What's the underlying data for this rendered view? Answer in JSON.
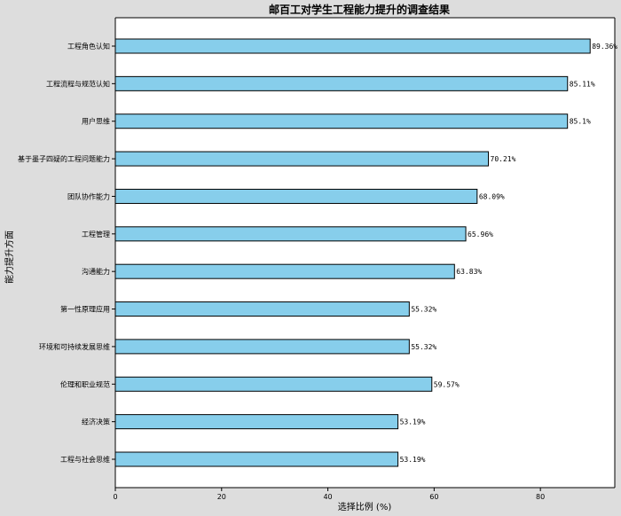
{
  "chart_data": {
    "type": "bar",
    "orientation": "horizontal",
    "title": "邮百工对学生工程能力提升的调查结果",
    "xlabel": "选择比例 (%)",
    "ylabel": "能力提升方面",
    "xlim": [
      0,
      94
    ],
    "xticks": [
      0,
      20,
      40,
      60,
      80
    ],
    "bar_color": "#87ceeb",
    "bar_edge_color": "#000000",
    "background_color": "#dddddd",
    "plot_background_color": "#ffffff",
    "grid": false,
    "categories": [
      "工程角色认知",
      "工程流程与规范认知",
      "用户思维",
      "基于墨子四疑的工程问题能力",
      "团队协作能力",
      "工程管理",
      "沟通能力",
      "第一性原理应用",
      "环境和可持续发展思维",
      "伦理和职业规范",
      "经济决策",
      "工程与社会思维"
    ],
    "values": [
      89.36,
      85.11,
      85.1,
      70.21,
      68.09,
      65.96,
      63.83,
      55.32,
      55.32,
      59.57,
      53.19,
      53.19
    ],
    "value_labels": [
      "89.36%",
      "85.11%",
      "85.1%",
      "70.21%",
      "68.09%",
      "65.96%",
      "63.83%",
      "55.32%",
      "55.32%",
      "59.57%",
      "53.19%",
      "53.19%"
    ]
  }
}
